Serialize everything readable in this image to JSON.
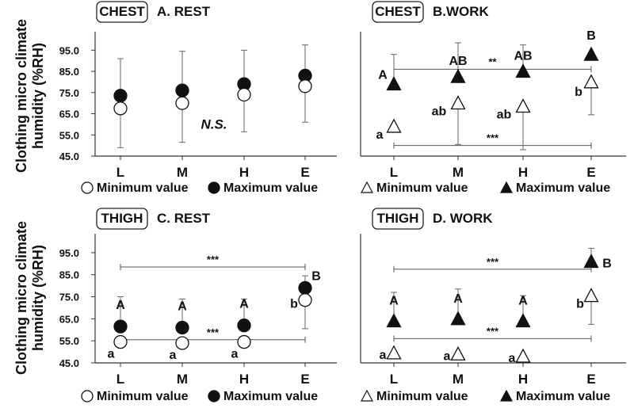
{
  "y_axis_label_line1": "Clothing micro climate",
  "y_axis_label_line2": "humidity (%RH)",
  "chart_data": [
    {
      "type": "scatter",
      "panel_tag": "CHEST",
      "title": "A. REST",
      "categories": [
        "L",
        "M",
        "H",
        "E"
      ],
      "ylim": [
        45,
        100
      ],
      "yticks": [
        "45.0",
        "55.0",
        "65.0",
        "75.0",
        "85.0",
        "95.0"
      ],
      "marker": "circle",
      "series": [
        {
          "name": "Minimum value",
          "filled": false,
          "values": [
            67.5,
            70,
            74,
            78
          ],
          "upper_error": [
            91,
            94.5,
            95,
            97.5
          ],
          "lower_error": null
        },
        {
          "name": "Maximum value",
          "filled": true,
          "values": [
            73.5,
            76,
            79,
            83
          ],
          "upper_error": null,
          "lower_error": [
            49,
            51.5,
            56.5,
            61
          ]
        }
      ],
      "annotations": [
        {
          "text": "N.S.",
          "style": "bold-italic"
        }
      ],
      "point_letters": [],
      "significance_bars": [],
      "legend": [
        "○ Minimum value",
        "● Maximum value"
      ]
    },
    {
      "type": "scatter",
      "panel_tag": "CHEST",
      "title": "B.WORK",
      "categories": [
        "L",
        "M",
        "H",
        "E"
      ],
      "ylim": [
        45,
        100
      ],
      "yticks": [
        "45.0",
        "55.0",
        "65.0",
        "75.0",
        "85.0",
        "95.0"
      ],
      "marker": "triangle",
      "series": [
        {
          "name": "Minimum value",
          "filled": false,
          "values": [
            58.5,
            69.5,
            68,
            79.5
          ],
          "upper_error": null,
          "lower_error": [
            null,
            50.5,
            48,
            64.5
          ]
        },
        {
          "name": "Maximum value",
          "filled": true,
          "values": [
            78.5,
            82,
            84.5,
            92.5
          ],
          "upper_error": [
            93,
            98.5,
            97.5,
            null
          ],
          "lower_error": null
        }
      ],
      "point_letters": [
        {
          "series": "Maximum value",
          "letters": [
            "A",
            "AB",
            "AB",
            "B"
          ]
        },
        {
          "series": "Minimum value",
          "letters": [
            "a",
            "ab",
            "ab",
            "b"
          ]
        }
      ],
      "significance_bars": [
        {
          "y": 86,
          "from": "L",
          "to": "E",
          "label": "**"
        },
        {
          "y": 50,
          "from": "L",
          "to": "E",
          "label": "***"
        }
      ],
      "legend": [
        "△ Minimum value",
        "▲ Maximum value"
      ]
    },
    {
      "type": "scatter",
      "panel_tag": "THIGH",
      "title": "C. REST",
      "categories": [
        "L",
        "M",
        "H",
        "E"
      ],
      "ylim": [
        45,
        100
      ],
      "yticks": [
        "45.0",
        "55.0",
        "65.0",
        "75.0",
        "85.0",
        "95.0"
      ],
      "marker": "circle",
      "series": [
        {
          "name": "Minimum value",
          "filled": false,
          "values": [
            54.5,
            54,
            54.5,
            73.5
          ],
          "upper_error": null,
          "lower_error": [
            null,
            null,
            null,
            60.5
          ]
        },
        {
          "name": "Maximum value",
          "filled": true,
          "values": [
            61.5,
            61,
            62,
            79
          ],
          "upper_error": [
            75,
            74,
            74,
            84.5
          ],
          "lower_error": null
        }
      ],
      "point_letters": [
        {
          "series": "Maximum value",
          "letters": [
            "A",
            "A",
            "A",
            "B"
          ]
        },
        {
          "series": "Minimum value",
          "letters": [
            "a",
            "a",
            "a",
            "b"
          ]
        }
      ],
      "significance_bars": [
        {
          "y": 88.5,
          "from": "L",
          "to": "E",
          "label": "***"
        },
        {
          "y": 55.5,
          "from": "L",
          "to": "E",
          "label": "***"
        }
      ],
      "legend": [
        "○ Minimum value",
        "● Maximum value"
      ]
    },
    {
      "type": "scatter",
      "panel_tag": "THIGH",
      "title": "D. WORK",
      "categories": [
        "L",
        "M",
        "H",
        "E"
      ],
      "ylim": [
        45,
        100
      ],
      "yticks": [],
      "marker": "triangle",
      "series": [
        {
          "name": "Minimum value",
          "filled": false,
          "values": [
            49,
            48.5,
            47.5,
            75
          ],
          "upper_error": null,
          "lower_error": [
            null,
            null,
            null,
            62.5
          ]
        },
        {
          "name": "Maximum value",
          "filled": true,
          "values": [
            63.5,
            64.5,
            63.5,
            90.5
          ],
          "upper_error": [
            77,
            78.5,
            75.5,
            97
          ],
          "lower_error": null
        }
      ],
      "point_letters": [
        {
          "series": "Maximum value",
          "letters": [
            "A",
            "A",
            "A",
            "B"
          ]
        },
        {
          "series": "Minimum value",
          "letters": [
            "a",
            "a",
            "a",
            "b"
          ]
        }
      ],
      "significance_bars": [
        {
          "y": 87.5,
          "from": "L",
          "to": "E",
          "label": "***"
        },
        {
          "y": 56,
          "from": "L",
          "to": "E",
          "label": "***"
        }
      ],
      "legend": [
        "△ Minimum value",
        "▲ Maximum value"
      ]
    }
  ]
}
